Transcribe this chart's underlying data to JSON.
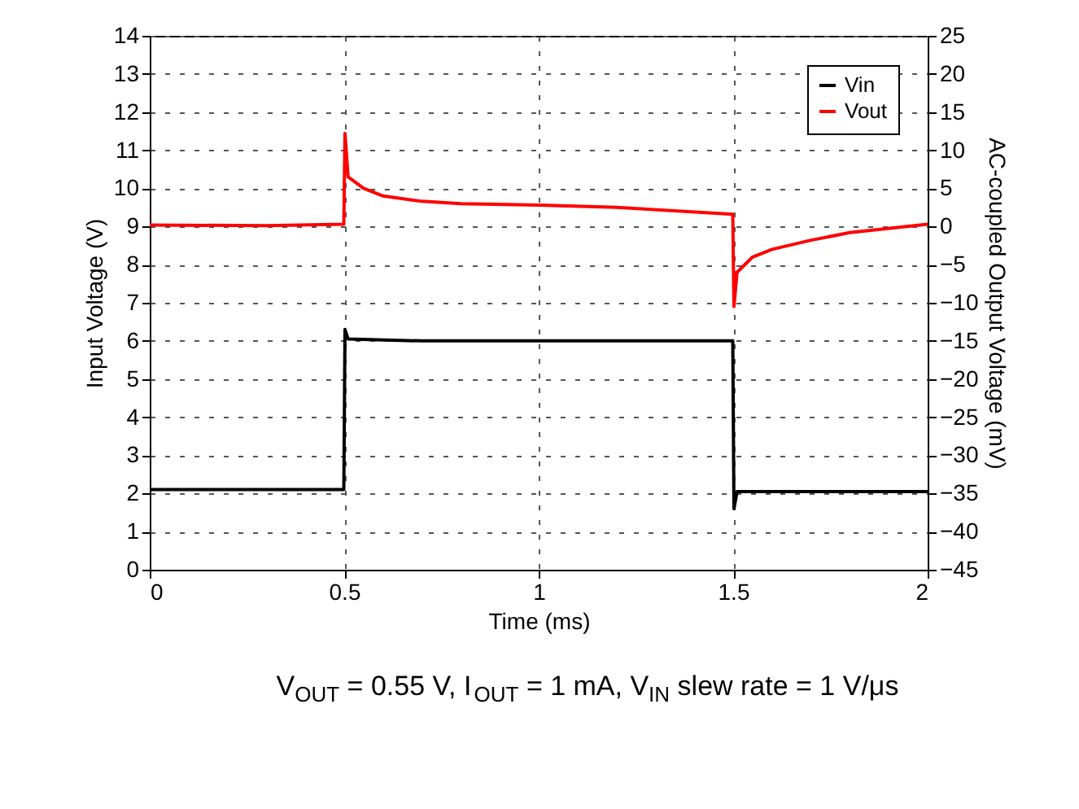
{
  "chart_data": {
    "type": "line",
    "xlabel": "Time (ms)",
    "ylabel": "Input Voltage (V)",
    "y2label": "AC-coupled Output Voltage (mV)",
    "xlim": [
      0,
      2
    ],
    "xticks": [
      0,
      0.5,
      1,
      1.5,
      2
    ],
    "ylim": [
      0,
      14
    ],
    "yticks": [
      0,
      1,
      2,
      3,
      4,
      5,
      6,
      7,
      8,
      9,
      10,
      11,
      12,
      13,
      14
    ],
    "y2lim": [
      -45,
      25
    ],
    "y2ticks": [
      -45,
      -40,
      -35,
      -30,
      -25,
      -20,
      -15,
      -10,
      -5,
      0,
      5,
      10,
      15,
      20,
      25
    ],
    "grid": true,
    "legend": "top right",
    "line_style": "solid",
    "series": [
      {
        "name": "Vin",
        "color": "#000000",
        "x": [
          0,
          0.25,
          0.499,
          0.502,
          0.51,
          0.7,
          1.0,
          1.3,
          1.499,
          1.502,
          1.51,
          1.7,
          2
        ],
        "values": [
          2.1,
          2.1,
          2.1,
          6.3,
          6.05,
          6.0,
          6.0,
          6.0,
          6.0,
          1.6,
          2.05,
          2.05,
          2.05
        ]
      },
      {
        "name": "Vout",
        "color": "#ff0000",
        "axis": "y2",
        "x": [
          0,
          0.3,
          0.499,
          0.502,
          0.51,
          0.55,
          0.6,
          0.7,
          0.8,
          1.0,
          1.2,
          1.499,
          1.502,
          1.51,
          1.55,
          1.6,
          1.7,
          1.8,
          2
        ],
        "values": [
          0.2,
          0.1,
          0.3,
          12.2,
          6.5,
          5,
          4,
          3.3,
          3,
          2.8,
          2.5,
          1.6,
          -10.5,
          -6,
          -4,
          -3,
          -1.8,
          -0.8,
          0.3
        ]
      }
    ],
    "annotations": [
      "V$_{OUT}$ = 0.55 V, I$_{OUT}$ = 1 mA, V$_{IN}$ slew rate = 1 V/μs"
    ]
  }
}
